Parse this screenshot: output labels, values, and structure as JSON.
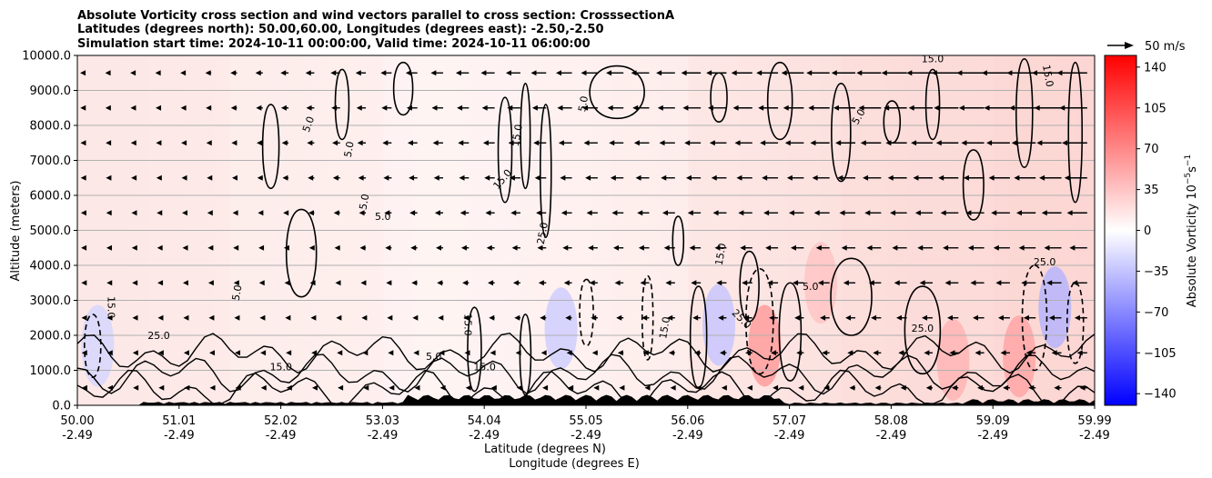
{
  "chart_data": {
    "type": "heatmap",
    "title_lines": [
      "Absolute Vorticity cross section and wind vectors parallel to cross section: CrosssectionA",
      "Latitudes (degrees north): 50.00,60.00, Longitudes (degrees east): -2.50,-2.50",
      "Simulation start time: 2024-10-11 00:00:00, Valid time: 2024-10-11 06:00:00"
    ],
    "xlabel_lines": [
      "Latitude (degrees N)",
      "Longitude (degrees E)"
    ],
    "ylabel": "Altitude (meters)",
    "x_ticks": [
      {
        "lat": "50.00",
        "lon": "-2.49"
      },
      {
        "lat": "51.01",
        "lon": "-2.49"
      },
      {
        "lat": "52.02",
        "lon": "-2.49"
      },
      {
        "lat": "53.03",
        "lon": "-2.49"
      },
      {
        "lat": "54.04",
        "lon": "-2.49"
      },
      {
        "lat": "55.05",
        "lon": "-2.49"
      },
      {
        "lat": "56.06",
        "lon": "-2.49"
      },
      {
        "lat": "57.07",
        "lon": "-2.49"
      },
      {
        "lat": "58.08",
        "lon": "-2.49"
      },
      {
        "lat": "59.09",
        "lon": "-2.49"
      },
      {
        "lat": "59.99",
        "lon": "-2.49"
      }
    ],
    "xlim": [
      50.0,
      59.99
    ],
    "y_ticks": [
      "0.0",
      "1000.0",
      "2000.0",
      "3000.0",
      "4000.0",
      "5000.0",
      "6000.0",
      "7000.0",
      "8000.0",
      "9000.0",
      "10000.0"
    ],
    "ylim": [
      0,
      10000
    ],
    "grid": "horizontal",
    "colorbar": {
      "label": "Absolute Vorticity 10",
      "label_unit_sup": "−5",
      "label_unit_s": "s",
      "label_unit_sup2": "−1",
      "ticks": [
        "140",
        "105",
        "70",
        "35",
        "0",
        "−35",
        "−70",
        "−105",
        "−140"
      ],
      "range": [
        -150,
        150
      ],
      "colormap": "bwr",
      "color_low": "#0000ff",
      "color_mid": "#ffffff",
      "color_high": "#ff0000"
    },
    "quiver_key": {
      "label": "50 m/s",
      "value": 50
    },
    "contour_labels": [
      "5.0",
      "15.0",
      "25.0"
    ],
    "contour_levels": [
      5,
      15,
      25
    ],
    "wind_direction": "left",
    "field_shading": [
      {
        "lat": 50.0,
        "z_top": 10000,
        "vorticity": 12
      },
      {
        "lat": 51.5,
        "z_top": 10000,
        "vorticity": 8
      },
      {
        "lat": 53.0,
        "z_top": 10000,
        "vorticity": 4
      },
      {
        "lat": 54.5,
        "z_top": 10000,
        "vorticity": 6
      },
      {
        "lat": 56.0,
        "z_top": 10000,
        "vorticity": 14
      },
      {
        "lat": 57.5,
        "z_top": 10000,
        "vorticity": 18
      },
      {
        "lat": 59.0,
        "z_top": 10000,
        "vorticity": 22
      }
    ]
  }
}
